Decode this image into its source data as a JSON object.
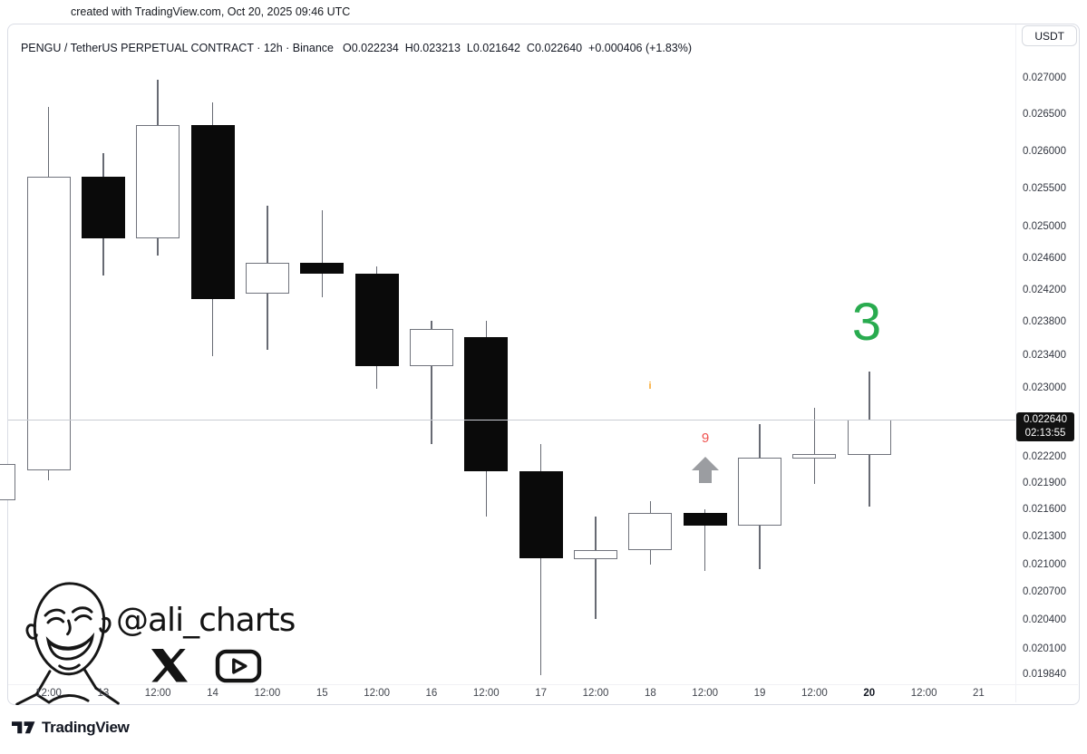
{
  "top": {
    "caption": "created with TradingView.com, Oct 20, 2025 09:46 UTC"
  },
  "header": {
    "title": "PENGU / TetherUS PERPETUAL CONTRACT · 12h · Binance",
    "ohlc": "O0.022234  H0.023213  L0.021642  C0.022640  +0.000406 (+1.83%)",
    "currency": "USDT"
  },
  "price_label": {
    "price": "0.022640",
    "countdown": "02:13:55"
  },
  "annotations": {
    "green_number": "3",
    "info_marker": "i",
    "red_number": "9",
    "arrow_color": "#9b9da1",
    "green_color": "#29ab4f",
    "red_color": "#ef5350",
    "orange_color": "#f8a72c"
  },
  "watermark": {
    "handle": "@ali_charts"
  },
  "footer": {
    "brand": "TradingView"
  },
  "chart_data": {
    "type": "candlestick",
    "symbol": "PENGU / TetherUS PERPETUAL CONTRACT",
    "interval": "12h",
    "exchange": "Binance",
    "price_scale": "log",
    "up_color": "#ffffff",
    "down_color": "#0a0a0a",
    "current_price": 0.02264,
    "ohlc_display": {
      "open": "0.022234",
      "high": "0.023213",
      "low": "0.021642",
      "close": "0.022640",
      "change": "+0.000406 (+1.83%)"
    },
    "first_slot": -1,
    "candles": [
      {
        "time": "Oct 12 00:00",
        "open": 0.02172,
        "high": 0.02213,
        "low": 0.02172,
        "close": 0.02213
      },
      {
        "time": "Oct 12 12:00",
        "open": 0.02205,
        "high": 0.02661,
        "low": 0.02194,
        "close": 0.02567
      },
      {
        "time": "Oct 13 00:00",
        "open": 0.02567,
        "high": 0.02598,
        "low": 0.02439,
        "close": 0.02486
      },
      {
        "time": "Oct 13 12:00",
        "open": 0.02486,
        "high": 0.02699,
        "low": 0.02464,
        "close": 0.02636
      },
      {
        "time": "Oct 14 00:00",
        "open": 0.02636,
        "high": 0.02667,
        "low": 0.0234,
        "close": 0.0241
      },
      {
        "time": "Oct 14 12:00",
        "open": 0.02416,
        "high": 0.02529,
        "low": 0.02347,
        "close": 0.02455
      },
      {
        "time": "Oct 15 00:00",
        "open": 0.02455,
        "high": 0.02523,
        "low": 0.02412,
        "close": 0.02441
      },
      {
        "time": "Oct 15 12:00",
        "open": 0.02441,
        "high": 0.02451,
        "low": 0.023,
        "close": 0.02327
      },
      {
        "time": "Oct 16 00:00",
        "open": 0.02327,
        "high": 0.02383,
        "low": 0.02236,
        "close": 0.02373
      },
      {
        "time": "Oct 16 12:00",
        "open": 0.02363,
        "high": 0.02383,
        "low": 0.02153,
        "close": 0.02204
      },
      {
        "time": "Oct 17 00:00",
        "open": 0.02204,
        "high": 0.02236,
        "low": 0.01984,
        "close": 0.02107
      },
      {
        "time": "Oct 17 12:00",
        "open": 0.02106,
        "high": 0.02153,
        "low": 0.02042,
        "close": 0.02116
      },
      {
        "time": "Oct 18 00:00",
        "open": 0.02116,
        "high": 0.02171,
        "low": 0.02101,
        "close": 0.02157
      },
      {
        "time": "Oct 18 12:00",
        "open": 0.02157,
        "high": 0.02161,
        "low": 0.02094,
        "close": 0.02143
      },
      {
        "time": "Oct 19 00:00",
        "open": 0.02143,
        "high": 0.02259,
        "low": 0.02096,
        "close": 0.0222
      },
      {
        "time": "Oct 19 12:00",
        "open": 0.02219,
        "high": 0.02278,
        "low": 0.0219,
        "close": 0.02224
      },
      {
        "time": "Oct 20 00:00",
        "open": 0.022234,
        "high": 0.023213,
        "low": 0.021642,
        "close": 0.02264
      }
    ],
    "y_axis_labels": [
      "0.027000",
      "0.026500",
      "0.026000",
      "0.025500",
      "0.025000",
      "0.024600",
      "0.024200",
      "0.023800",
      "0.023400",
      "0.023000",
      "0.022200",
      "0.021900",
      "0.021600",
      "0.021300",
      "0.021000",
      "0.020700",
      "0.020400",
      "0.020100",
      "0.019840"
    ],
    "x_axis_labels": [
      {
        "text": "12:00"
      },
      {
        "text": "13"
      },
      {
        "text": "12:00"
      },
      {
        "text": "14"
      },
      {
        "text": "12:00"
      },
      {
        "text": "15"
      },
      {
        "text": "12:00"
      },
      {
        "text": "16"
      },
      {
        "text": "12:00"
      },
      {
        "text": "17"
      },
      {
        "text": "12:00"
      },
      {
        "text": "18"
      },
      {
        "text": "12:00"
      },
      {
        "text": "19"
      },
      {
        "text": "12:00"
      },
      {
        "text": "20",
        "bold": true
      },
      {
        "text": "12:00"
      },
      {
        "text": "21"
      }
    ]
  }
}
